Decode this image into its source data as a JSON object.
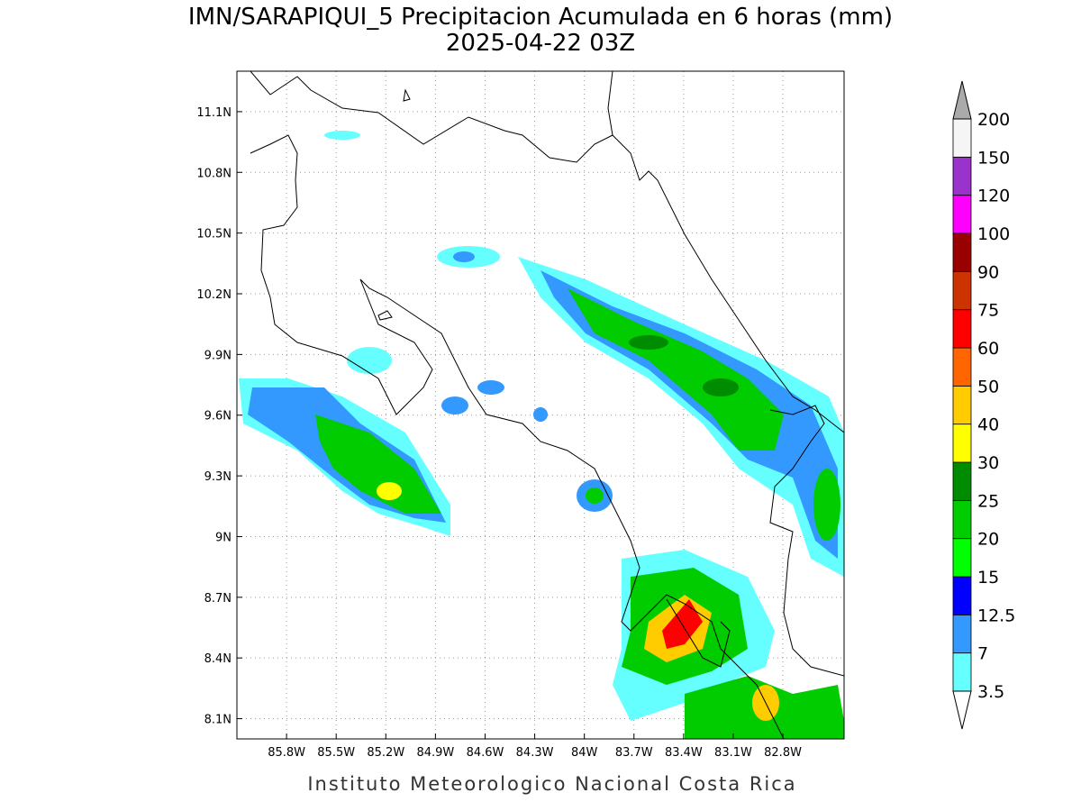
{
  "title": "IMN/SARAPIQUI_5 Precipitacion Acumulada en 6 horas (mm)",
  "subtitle": "2025-04-22 03Z",
  "map": {
    "lonlim": [
      -86.1,
      -82.43
    ],
    "latlim": [
      8.0,
      11.3
    ],
    "lon_ticks": [
      {
        "value": -85.8,
        "label": "85.8W"
      },
      {
        "value": -85.5,
        "label": "85.5W"
      },
      {
        "value": -85.2,
        "label": "85.2W"
      },
      {
        "value": -84.9,
        "label": "84.9W"
      },
      {
        "value": -84.6,
        "label": "84.6W"
      },
      {
        "value": -84.3,
        "label": "84.3W"
      },
      {
        "value": -84,
        "label": "84W"
      },
      {
        "value": -83.7,
        "label": "83.7W"
      },
      {
        "value": -83.4,
        "label": "83.4W"
      },
      {
        "value": -83.1,
        "label": "83.1W"
      },
      {
        "value": -82.8,
        "label": "82.8W"
      }
    ],
    "lat_ticks": [
      {
        "value": 8.1,
        "label": "8.1N"
      },
      {
        "value": 8.4,
        "label": "8.4N"
      },
      {
        "value": 8.7,
        "label": "8.7N"
      },
      {
        "value": 9,
        "label": "9N"
      },
      {
        "value": 9.3,
        "label": "9.3N"
      },
      {
        "value": 9.6,
        "label": "9.6N"
      },
      {
        "value": 9.9,
        "label": "9.9N"
      },
      {
        "value": 10.2,
        "label": "10.2N"
      },
      {
        "value": 10.5,
        "label": "10.5N"
      },
      {
        "value": 10.8,
        "label": "10.8N"
      },
      {
        "value": 11.1,
        "label": "11.1N"
      }
    ],
    "grid": true
  },
  "colorbar": {
    "levels": [
      3.5,
      7,
      12.5,
      15,
      20,
      25,
      30,
      40,
      50,
      60,
      75,
      90,
      100,
      120,
      150,
      200
    ],
    "colors": [
      "#66ffff",
      "#3399ff",
      "#0000ff",
      "#00ff00",
      "#00cc00",
      "#008c00",
      "#ffff00",
      "#ffcc00",
      "#ff6600",
      "#ff0000",
      "#cc3300",
      "#990000",
      "#ff00ff",
      "#9933cc",
      "#f5f5f5"
    ],
    "under_color": "#ffffff",
    "over_color": "#aaaaaa"
  },
  "footer": "Instituto Meteorologico Nacional Costa Rica"
}
